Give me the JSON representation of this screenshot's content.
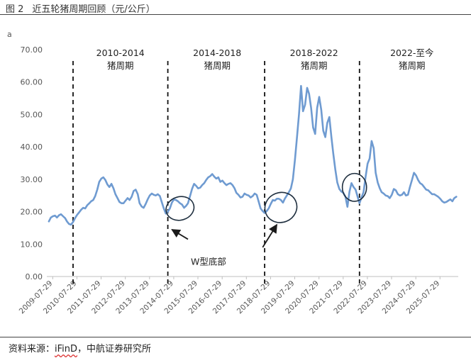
{
  "header": {
    "figure_number": "图 2",
    "title": "近五轮猪周期回顾（元/公斤）"
  },
  "footer": {
    "source_prefix": "资料来源：",
    "source_ifind": "iFinD",
    "source_suffix": "，中航证券研究所"
  },
  "chart_data": {
    "type": "line",
    "unit_label": "a",
    "ylim": [
      0,
      70
    ],
    "yticks": [
      "0.00",
      "10.00",
      "20.00",
      "30.00",
      "40.00",
      "50.00",
      "60.00",
      "70.00"
    ],
    "xlim": [
      "2009-05-01",
      "2026-04-30"
    ],
    "xticks": [
      "2009-07-29",
      "2010-07-29",
      "2011-07-29",
      "2012-07-29",
      "2013-07-29",
      "2014-07-29",
      "2015-07-29",
      "2016-07-29",
      "2017-07-29",
      "2018-07-29",
      "2019-07-29",
      "2020-07-29",
      "2021-07-29",
      "2022-07-29",
      "2023-07-29",
      "2024-07-29",
      "2025-07-29"
    ],
    "grid": false,
    "series_color": "#6f9bd1",
    "cycle_dividers": [
      "2010-06-01",
      "2014-05-01",
      "2018-05-01",
      "2022-04-01"
    ],
    "periods": [
      {
        "line1": "2010-2014",
        "line2": "猪周期",
        "center": "2012-05-15"
      },
      {
        "line1": "2014-2018",
        "line2": "猪周期",
        "center": "2016-05-15"
      },
      {
        "line1": "2018-2022",
        "line2": "猪周期",
        "center": "2020-05-15"
      },
      {
        "line1": "2022-至今",
        "line2": "猪周期",
        "center": "2024-06-01"
      }
    ],
    "annotation": {
      "text": "W型底部"
    },
    "ellipses": [
      {
        "center_x": "2014-11-01",
        "center_y": 21,
        "rx_months": 7,
        "ry_value": 3.6,
        "angle": -16
      },
      {
        "center_x": "2019-01-01",
        "center_y": 21.3,
        "rx_months": 8,
        "ry_value": 4.6,
        "angle": -22
      },
      {
        "center_x": "2022-01-15",
        "center_y": 27.5,
        "rx_months": 6,
        "ry_value": 4.3,
        "angle": 0
      }
    ],
    "arrows": [
      {
        "from": [
          "2015-03-01",
          11.5
        ],
        "to": [
          "2014-07-01",
          14.5
        ]
      },
      {
        "from": [
          "2018-04-01",
          9.0
        ],
        "to": [
          "2018-11-01",
          16.0
        ]
      }
    ],
    "series": [
      {
        "points": [
          [
            "2009-06-01",
            17.0
          ],
          [
            "2009-07-01",
            18.2
          ],
          [
            "2009-08-01",
            18.6
          ],
          [
            "2009-09-01",
            18.8
          ],
          [
            "2009-10-01",
            18.2
          ],
          [
            "2009-11-01",
            18.9
          ],
          [
            "2009-12-01",
            19.2
          ],
          [
            "2010-01-01",
            18.6
          ],
          [
            "2010-02-01",
            18.0
          ],
          [
            "2010-03-01",
            17.0
          ],
          [
            "2010-04-01",
            16.2
          ],
          [
            "2010-05-01",
            16.0
          ],
          [
            "2010-06-01",
            16.8
          ],
          [
            "2010-07-01",
            18.0
          ],
          [
            "2010-08-01",
            19.0
          ],
          [
            "2010-09-01",
            19.8
          ],
          [
            "2010-10-01",
            20.6
          ],
          [
            "2010-11-01",
            21.2
          ],
          [
            "2010-12-01",
            21.0
          ],
          [
            "2011-01-01",
            22.0
          ],
          [
            "2011-02-01",
            22.6
          ],
          [
            "2011-03-01",
            23.2
          ],
          [
            "2011-04-01",
            23.6
          ],
          [
            "2011-05-01",
            24.8
          ],
          [
            "2011-06-01",
            26.8
          ],
          [
            "2011-07-01",
            29.2
          ],
          [
            "2011-08-01",
            30.2
          ],
          [
            "2011-09-01",
            30.6
          ],
          [
            "2011-10-01",
            29.8
          ],
          [
            "2011-11-01",
            28.4
          ],
          [
            "2011-12-01",
            27.6
          ],
          [
            "2012-01-01",
            28.6
          ],
          [
            "2012-02-01",
            27.2
          ],
          [
            "2012-03-01",
            25.4
          ],
          [
            "2012-04-01",
            24.2
          ],
          [
            "2012-05-01",
            23.0
          ],
          [
            "2012-06-01",
            22.6
          ],
          [
            "2012-07-01",
            22.6
          ],
          [
            "2012-08-01",
            23.4
          ],
          [
            "2012-09-01",
            24.2
          ],
          [
            "2012-10-01",
            23.6
          ],
          [
            "2012-11-01",
            24.6
          ],
          [
            "2012-12-01",
            26.4
          ],
          [
            "2013-01-01",
            26.8
          ],
          [
            "2013-02-01",
            25.4
          ],
          [
            "2013-03-01",
            22.6
          ],
          [
            "2013-04-01",
            21.6
          ],
          [
            "2013-05-01",
            21.2
          ],
          [
            "2013-06-01",
            22.4
          ],
          [
            "2013-07-01",
            23.8
          ],
          [
            "2013-08-01",
            25.0
          ],
          [
            "2013-09-01",
            25.6
          ],
          [
            "2013-10-01",
            25.2
          ],
          [
            "2013-11-01",
            25.0
          ],
          [
            "2013-12-01",
            25.4
          ],
          [
            "2014-01-01",
            24.8
          ],
          [
            "2014-02-01",
            22.8
          ],
          [
            "2014-03-01",
            21.0
          ],
          [
            "2014-04-01",
            19.4
          ],
          [
            "2014-05-01",
            20.0
          ],
          [
            "2014-06-01",
            21.0
          ],
          [
            "2014-07-01",
            22.8
          ],
          [
            "2014-08-01",
            23.8
          ],
          [
            "2014-09-01",
            23.6
          ],
          [
            "2014-10-01",
            23.2
          ],
          [
            "2014-11-01",
            22.6
          ],
          [
            "2014-12-01",
            22.2
          ],
          [
            "2015-01-01",
            21.2
          ],
          [
            "2015-02-01",
            21.8
          ],
          [
            "2015-03-01",
            22.6
          ],
          [
            "2015-04-01",
            24.8
          ],
          [
            "2015-05-01",
            27.0
          ],
          [
            "2015-06-01",
            28.6
          ],
          [
            "2015-07-01",
            28.0
          ],
          [
            "2015-08-01",
            27.2
          ],
          [
            "2015-09-01",
            27.4
          ],
          [
            "2015-10-01",
            28.2
          ],
          [
            "2015-11-01",
            28.8
          ],
          [
            "2015-12-01",
            29.8
          ],
          [
            "2016-01-01",
            30.6
          ],
          [
            "2016-02-01",
            31.0
          ],
          [
            "2016-03-01",
            31.6
          ],
          [
            "2016-04-01",
            30.8
          ],
          [
            "2016-05-01",
            30.2
          ],
          [
            "2016-06-01",
            30.6
          ],
          [
            "2016-07-01",
            29.2
          ],
          [
            "2016-08-01",
            29.6
          ],
          [
            "2016-09-01",
            28.8
          ],
          [
            "2016-10-01",
            28.2
          ],
          [
            "2016-11-01",
            28.6
          ],
          [
            "2016-12-01",
            28.8
          ],
          [
            "2017-01-01",
            28.2
          ],
          [
            "2017-02-01",
            27.2
          ],
          [
            "2017-03-01",
            25.8
          ],
          [
            "2017-04-01",
            25.2
          ],
          [
            "2017-05-01",
            24.4
          ],
          [
            "2017-06-01",
            24.6
          ],
          [
            "2017-07-01",
            25.6
          ],
          [
            "2017-08-01",
            25.2
          ],
          [
            "2017-09-01",
            25.0
          ],
          [
            "2017-10-01",
            24.4
          ],
          [
            "2017-11-01",
            24.8
          ],
          [
            "2017-12-01",
            25.6
          ],
          [
            "2018-01-01",
            25.2
          ],
          [
            "2018-02-01",
            23.0
          ],
          [
            "2018-03-01",
            21.0
          ],
          [
            "2018-04-01",
            20.2
          ],
          [
            "2018-05-01",
            19.6
          ],
          [
            "2018-06-01",
            20.2
          ],
          [
            "2018-07-01",
            21.0
          ],
          [
            "2018-08-01",
            22.4
          ],
          [
            "2018-09-01",
            23.6
          ],
          [
            "2018-10-01",
            23.4
          ],
          [
            "2018-11-01",
            24.0
          ],
          [
            "2018-12-01",
            24.0
          ],
          [
            "2019-01-01",
            23.6
          ],
          [
            "2019-02-01",
            22.8
          ],
          [
            "2019-03-01",
            24.0
          ],
          [
            "2019-04-01",
            25.0
          ],
          [
            "2019-05-01",
            26.0
          ],
          [
            "2019-06-01",
            27.2
          ],
          [
            "2019-07-01",
            30.0
          ],
          [
            "2019-08-01",
            36.0
          ],
          [
            "2019-09-01",
            43.0
          ],
          [
            "2019-10-01",
            50.0
          ],
          [
            "2019-11-01",
            58.8
          ],
          [
            "2019-12-01",
            51.0
          ],
          [
            "2020-01-01",
            53.0
          ],
          [
            "2020-02-01",
            58.2
          ],
          [
            "2020-03-01",
            56.4
          ],
          [
            "2020-04-01",
            52.0
          ],
          [
            "2020-05-01",
            46.0
          ],
          [
            "2020-06-01",
            44.0
          ],
          [
            "2020-07-01",
            52.0
          ],
          [
            "2020-08-01",
            55.4
          ],
          [
            "2020-09-01",
            51.4
          ],
          [
            "2020-10-01",
            45.0
          ],
          [
            "2020-11-01",
            43.0
          ],
          [
            "2020-12-01",
            47.4
          ],
          [
            "2021-01-01",
            49.2
          ],
          [
            "2021-02-01",
            43.0
          ],
          [
            "2021-03-01",
            38.0
          ],
          [
            "2021-04-01",
            33.0
          ],
          [
            "2021-05-01",
            29.0
          ],
          [
            "2021-06-01",
            27.0
          ],
          [
            "2021-07-01",
            26.2
          ],
          [
            "2021-08-01",
            25.8
          ],
          [
            "2021-09-01",
            24.6
          ],
          [
            "2021-10-01",
            21.5
          ],
          [
            "2021-11-01",
            26.2
          ],
          [
            "2021-12-01",
            28.8
          ],
          [
            "2022-01-01",
            27.6
          ],
          [
            "2022-02-01",
            26.8
          ],
          [
            "2022-03-01",
            24.8
          ],
          [
            "2022-04-01",
            22.6
          ],
          [
            "2022-05-01",
            24.4
          ],
          [
            "2022-06-01",
            26.0
          ],
          [
            "2022-07-01",
            30.6
          ],
          [
            "2022-08-01",
            34.8
          ],
          [
            "2022-09-01",
            36.4
          ],
          [
            "2022-10-01",
            41.8
          ],
          [
            "2022-11-01",
            39.6
          ],
          [
            "2022-12-01",
            32.0
          ],
          [
            "2023-01-01",
            29.0
          ],
          [
            "2023-02-01",
            27.2
          ],
          [
            "2023-03-01",
            26.0
          ],
          [
            "2023-04-01",
            25.6
          ],
          [
            "2023-05-01",
            25.0
          ],
          [
            "2023-06-01",
            24.8
          ],
          [
            "2023-07-01",
            24.2
          ],
          [
            "2023-08-01",
            25.2
          ],
          [
            "2023-09-01",
            27.0
          ],
          [
            "2023-10-01",
            26.6
          ],
          [
            "2023-11-01",
            25.4
          ],
          [
            "2023-12-01",
            25.0
          ],
          [
            "2024-01-01",
            25.2
          ],
          [
            "2024-02-01",
            26.0
          ],
          [
            "2024-03-01",
            25.0
          ],
          [
            "2024-04-01",
            25.2
          ],
          [
            "2024-05-01",
            27.6
          ],
          [
            "2024-06-01",
            29.8
          ],
          [
            "2024-07-01",
            32.0
          ],
          [
            "2024-08-01",
            31.2
          ],
          [
            "2024-09-01",
            29.8
          ],
          [
            "2024-10-01",
            28.8
          ],
          [
            "2024-11-01",
            28.4
          ],
          [
            "2024-12-01",
            27.6
          ],
          [
            "2025-01-01",
            26.8
          ],
          [
            "2025-02-01",
            26.6
          ],
          [
            "2025-03-01",
            26.0
          ],
          [
            "2025-04-01",
            25.4
          ],
          [
            "2025-05-01",
            25.4
          ],
          [
            "2025-06-01",
            25.0
          ],
          [
            "2025-07-01",
            24.6
          ],
          [
            "2025-08-01",
            24.0
          ],
          [
            "2025-09-01",
            23.2
          ],
          [
            "2025-10-01",
            22.8
          ],
          [
            "2025-11-01",
            23.0
          ],
          [
            "2025-12-01",
            23.4
          ],
          [
            "2026-01-01",
            23.8
          ],
          [
            "2026-02-01",
            23.2
          ],
          [
            "2026-03-01",
            24.2
          ],
          [
            "2026-04-01",
            24.6
          ]
        ]
      }
    ]
  }
}
